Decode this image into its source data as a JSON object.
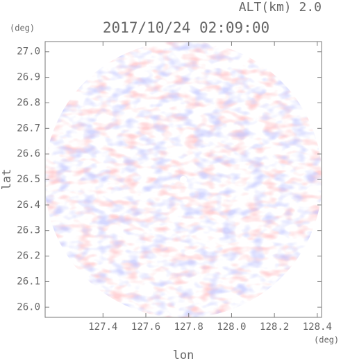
{
  "chart_data": {
    "type": "ppi",
    "title": "2017/10/24 02:09:00",
    "subtitle": "ALT(km) 2.0",
    "x_label": "lon",
    "y_label": "lat",
    "x_unit": "(deg)",
    "y_unit": "(deg)",
    "xlim": [
      127.13,
      128.42
    ],
    "ylim": [
      25.96,
      27.04
    ],
    "xticks": [
      127.4,
      127.6,
      127.8,
      {
        "value": 128.0,
        "label": "128.0"
      },
      128.2,
      128.4
    ],
    "yticks": [
      {
        "value": 26.0,
        "label": "26.0"
      },
      26.1,
      26.2,
      26.3,
      26.4,
      26.5,
      26.6,
      26.7,
      26.8,
      26.9,
      {
        "value": 27.0,
        "label": "27.0"
      }
    ]
  }
}
